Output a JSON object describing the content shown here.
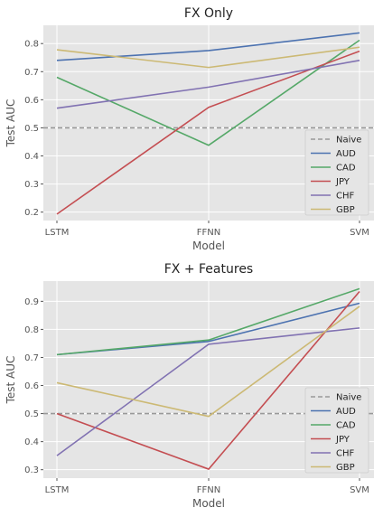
{
  "chart_data": [
    {
      "type": "line",
      "title": "FX Only",
      "xlabel": "Model",
      "ylabel": "Test AUC",
      "categories": [
        "LSTM",
        "FFNN",
        "SVM"
      ],
      "ylim": [
        0.17,
        0.865
      ],
      "yticks": [
        "0.2",
        "0.3",
        "0.4",
        "0.5",
        "0.6",
        "0.7",
        "0.8"
      ],
      "grid": true,
      "legend_position": "lower-right",
      "baseline": {
        "name": "Naive",
        "value": 0.5,
        "color": "#999999"
      },
      "series": [
        {
          "name": "AUD",
          "color": "#4c72b0",
          "values": [
            0.74,
            0.775,
            0.838
          ]
        },
        {
          "name": "CAD",
          "color": "#55a868",
          "values": [
            0.68,
            0.438,
            0.812
          ]
        },
        {
          "name": "JPY",
          "color": "#c44e52",
          "values": [
            0.193,
            0.573,
            0.773
          ]
        },
        {
          "name": "CHF",
          "color": "#8172b2",
          "values": [
            0.57,
            0.645,
            0.74
          ]
        },
        {
          "name": "GBP",
          "color": "#ccb974",
          "values": [
            0.778,
            0.715,
            0.787
          ]
        }
      ]
    },
    {
      "type": "line",
      "title": "FX + Features",
      "xlabel": "Model",
      "ylabel": "Test AUC",
      "categories": [
        "LSTM",
        "FFNN",
        "SVM"
      ],
      "ylim": [
        0.27,
        0.972
      ],
      "yticks": [
        "0.3",
        "0.4",
        "0.5",
        "0.6",
        "0.7",
        "0.8",
        "0.9"
      ],
      "grid": true,
      "legend_position": "lower-right",
      "baseline": {
        "name": "Naive",
        "value": 0.5,
        "color": "#999999"
      },
      "series": [
        {
          "name": "AUD",
          "color": "#4c72b0",
          "values": [
            0.71,
            0.757,
            0.893
          ]
        },
        {
          "name": "CAD",
          "color": "#55a868",
          "values": [
            0.71,
            0.762,
            0.945
          ]
        },
        {
          "name": "JPY",
          "color": "#c44e52",
          "values": [
            0.5,
            0.302,
            0.935
          ]
        },
        {
          "name": "CHF",
          "color": "#8172b2",
          "values": [
            0.35,
            0.747,
            0.805
          ]
        },
        {
          "name": "GBP",
          "color": "#ccb974",
          "values": [
            0.61,
            0.49,
            0.882
          ]
        }
      ]
    }
  ]
}
